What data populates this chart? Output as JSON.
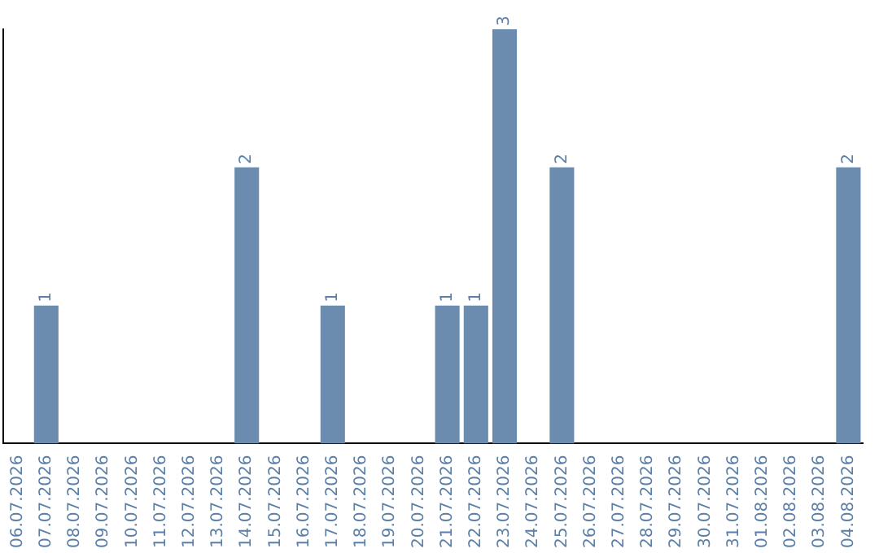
{
  "chart_data": {
    "type": "bar",
    "categories": [
      "06.07.2026",
      "07.07.2026",
      "08.07.2026",
      "09.07.2026",
      "10.07.2026",
      "11.07.2026",
      "12.07.2026",
      "13.07.2026",
      "14.07.2026",
      "15.07.2026",
      "16.07.2026",
      "17.07.2026",
      "18.07.2026",
      "19.07.2026",
      "20.07.2026",
      "21.07.2026",
      "22.07.2026",
      "23.07.2026",
      "24.07.2026",
      "25.07.2026",
      "26.07.2026",
      "27.07.2026",
      "28.07.2026",
      "29.07.2026",
      "30.07.2026",
      "31.07.2026",
      "01.08.2026",
      "02.08.2026",
      "03.08.2026",
      "04.08.2026"
    ],
    "values": [
      0,
      1,
      0,
      0,
      0,
      0,
      0,
      0,
      2,
      0,
      0,
      1,
      0,
      0,
      0,
      1,
      1,
      3,
      0,
      2,
      0,
      0,
      0,
      0,
      0,
      0,
      0,
      0,
      0,
      2
    ],
    "value_labels": [
      null,
      "1",
      null,
      null,
      null,
      null,
      null,
      null,
      "2",
      null,
      null,
      "1",
      null,
      null,
      null,
      "1",
      "1",
      "3",
      null,
      "2",
      null,
      null,
      null,
      null,
      null,
      null,
      null,
      null,
      null,
      "2"
    ],
    "color": "#6b8cae",
    "ylim": [
      0,
      3
    ],
    "grid": false,
    "legend": false,
    "tick_labels": "x"
  }
}
